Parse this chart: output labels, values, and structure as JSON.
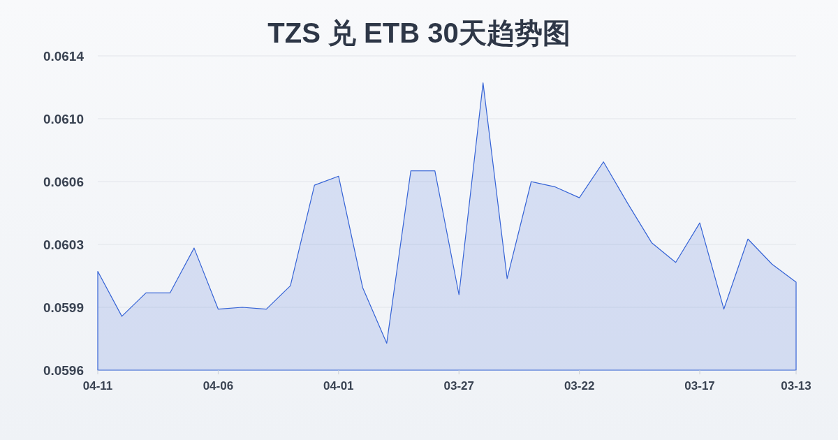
{
  "chart_data": {
    "type": "area",
    "title": "TZS 兑 ETB 30天趋势图",
    "x": [
      "--04-11",
      "--04-10",
      "--04-09",
      "--04-08",
      "--04-07",
      "--04-06",
      "--04-05",
      "--04-04",
      "--04-03",
      "--04-02",
      "--04-01",
      "--03-31",
      "--03-30",
      "--03-29",
      "--03-28",
      "--03-27",
      "--03-26",
      "--03-25",
      "--03-24",
      "--03-23",
      "--03-22",
      "--03-21",
      "--03-20",
      "--03-19",
      "--03-18",
      "--03-17",
      "--03-16",
      "--03-15",
      "--03-14",
      "--03-13"
    ],
    "series": [
      {
        "color": "#3563d6",
        "values": [
          0.06015,
          0.0599,
          0.06003,
          0.06003,
          0.06028,
          0.05994,
          0.05995,
          0.05994,
          0.06007,
          0.06063,
          0.06068,
          0.06006,
          0.05975,
          0.06071,
          0.06071,
          0.06002,
          0.0612,
          0.06011,
          0.06065,
          0.06062,
          0.06056,
          0.06076,
          0.06053,
          0.06031,
          0.0602,
          0.06042,
          0.05994,
          0.06033,
          0.06019,
          0.06009
        ]
      }
    ],
    "xlim": [
      "--04-11",
      "--03-13"
    ],
    "xticks": [
      {
        "value": "--04-11",
        "label": "04-11"
      },
      {
        "value": "--04-06",
        "label": "04-06"
      },
      {
        "value": "--04-01",
        "label": "04-01"
      },
      {
        "value": "--03-27",
        "label": "03-27"
      },
      {
        "value": "--03-22",
        "label": "03-22"
      },
      {
        "value": "--03-17",
        "label": "03-17"
      },
      {
        "value": "--03-13",
        "label": "03-13"
      }
    ],
    "ylim": [
      0.0596,
      0.06135
    ],
    "yticks": [
      {
        "value": 0.0596,
        "label": "0.0596"
      },
      {
        "value": 0.05995,
        "label": "0.0599"
      },
      {
        "value": 0.0603,
        "label": "0.0603"
      },
      {
        "value": 0.06065,
        "label": "0.0606"
      },
      {
        "value": 0.061,
        "label": "0.0610"
      },
      {
        "value": 0.06135,
        "label": "0.0614"
      }
    ],
    "grid": "y",
    "line_style": "solid"
  }
}
